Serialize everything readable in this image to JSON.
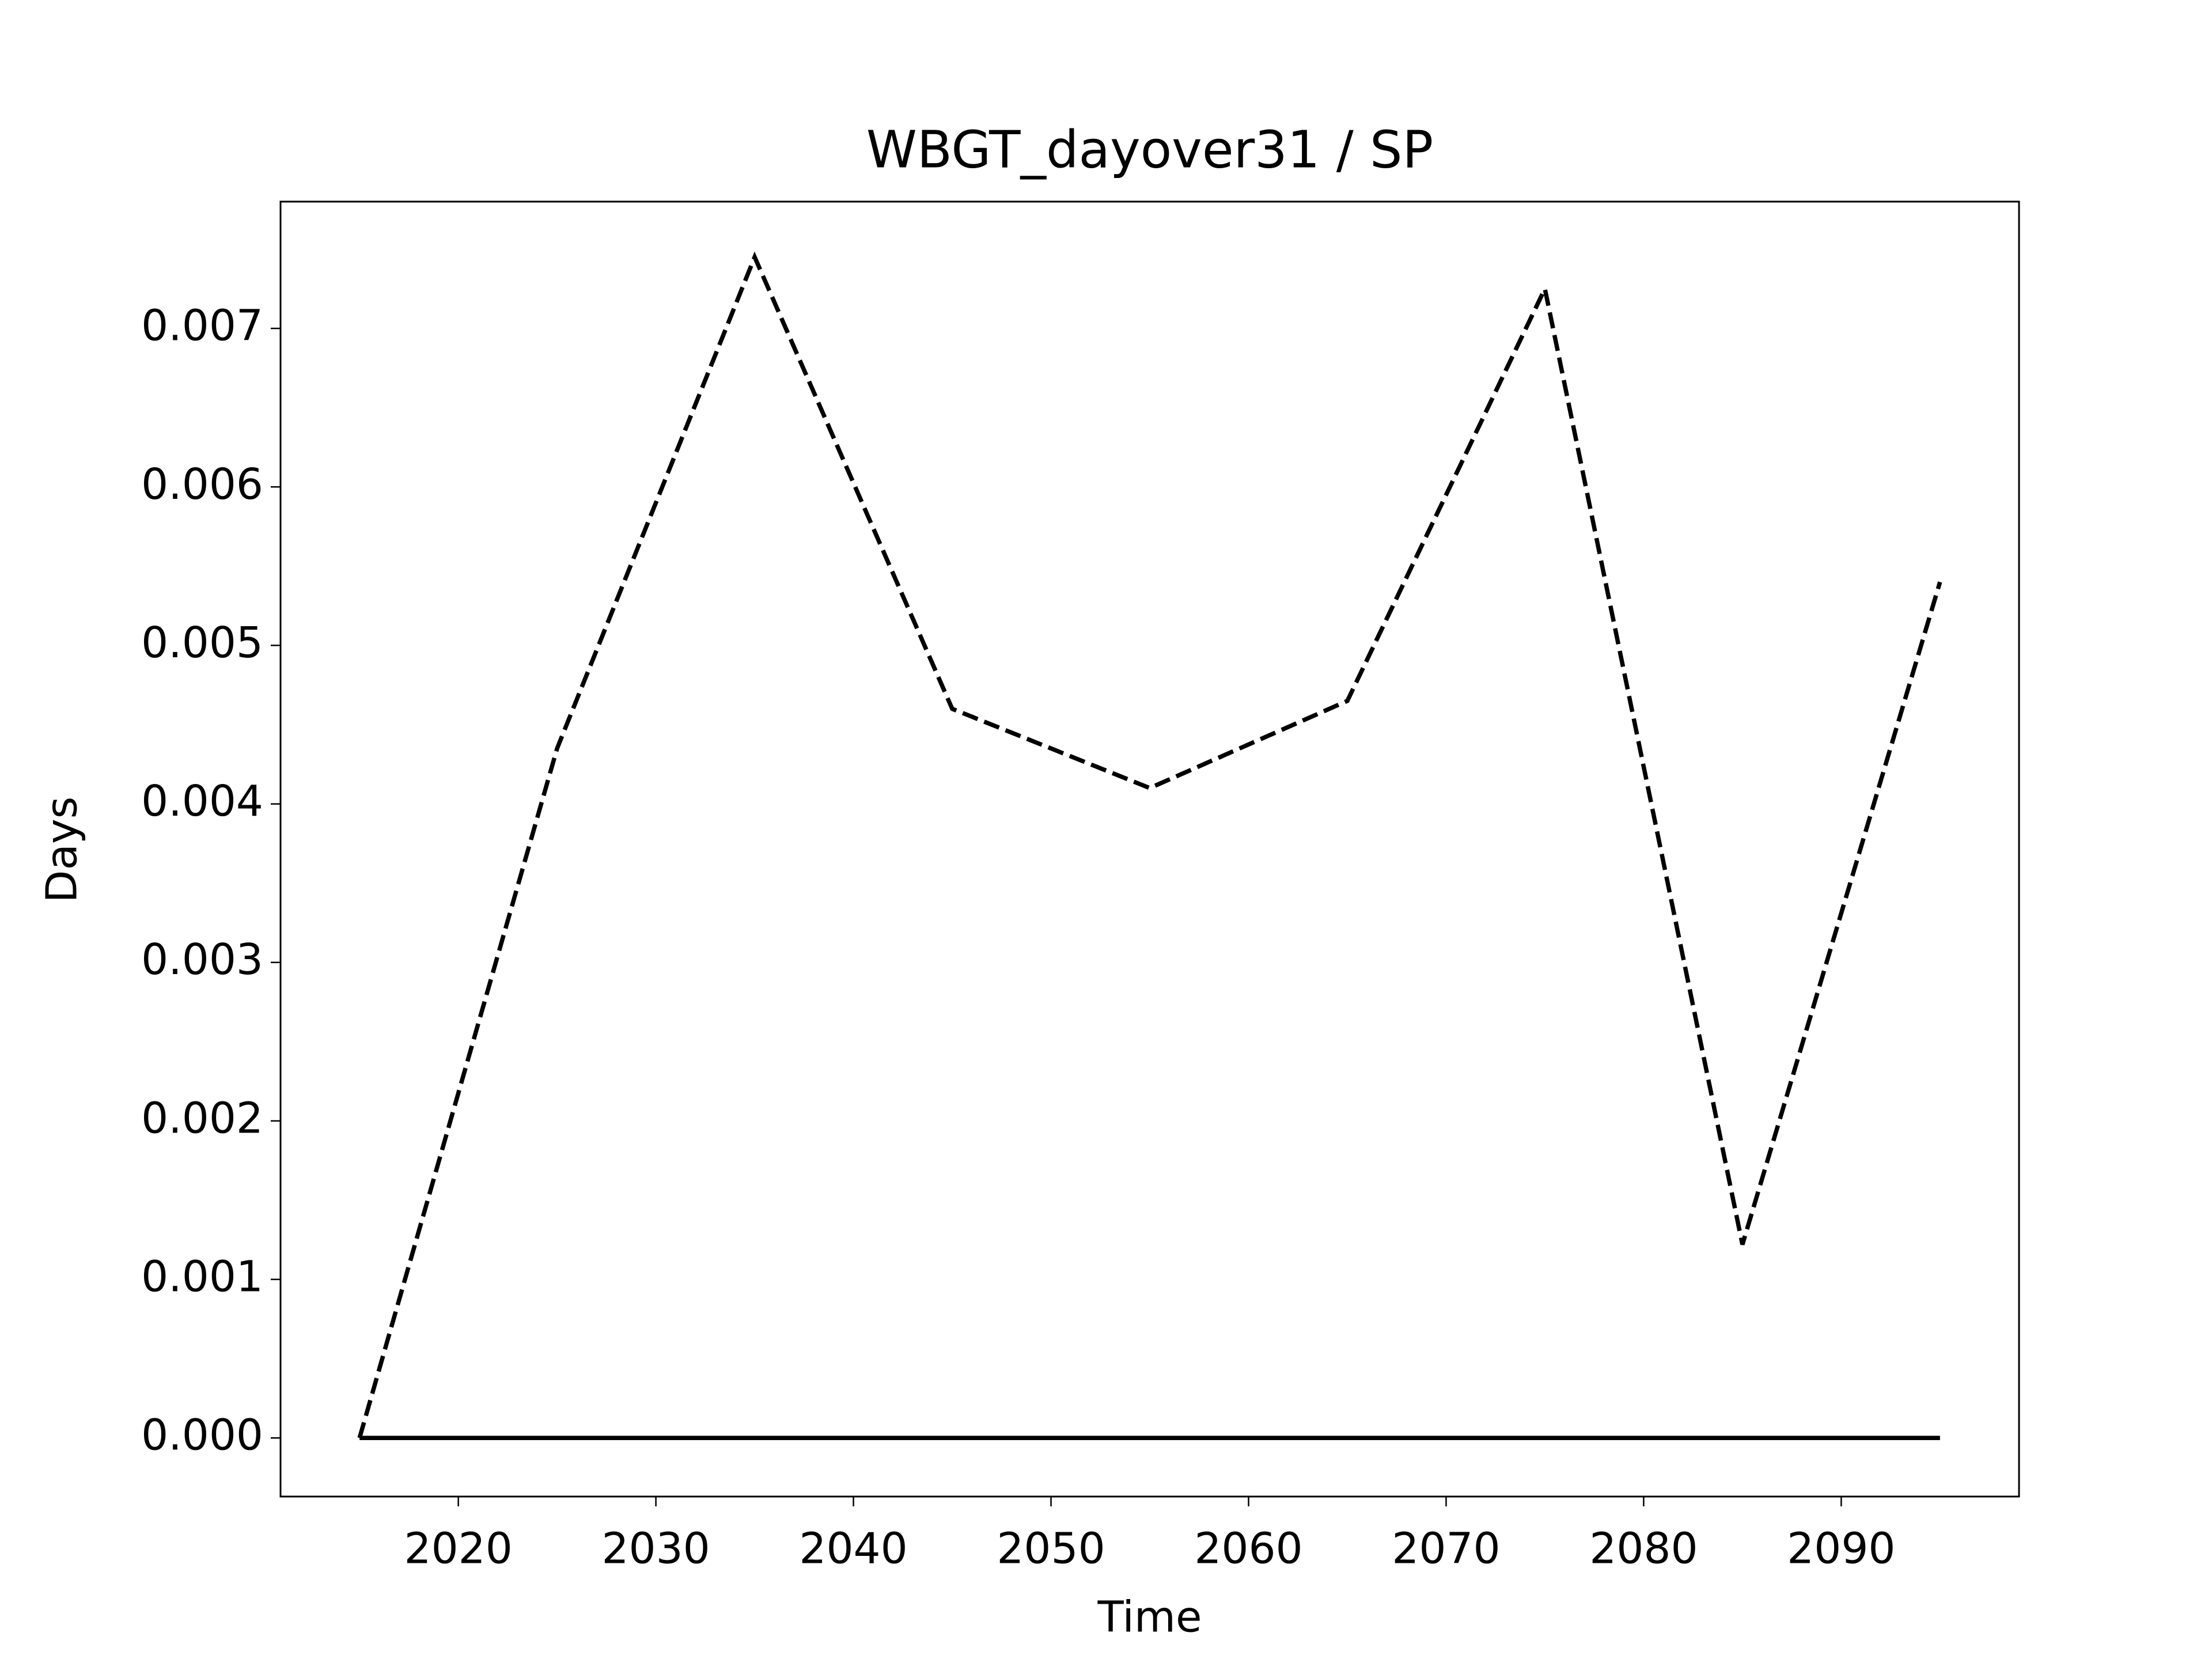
{
  "chart_data": {
    "type": "line",
    "title": "WBGT_dayover31 / SP",
    "xlabel": "Time",
    "ylabel": "Days",
    "x": [
      2015,
      2025,
      2035,
      2045,
      2055,
      2065,
      2075,
      2085,
      2095
    ],
    "series": [
      {
        "color": "#000000",
        "style": "dashed",
        "values": [
          0,
          0.00435,
          0.00745,
          0.0046,
          0.0041,
          0.00465,
          0.00725,
          0.00122,
          0.0054
        ]
      },
      {
        "color": "#000000",
        "style": "solid",
        "values": [
          0,
          0,
          0,
          0,
          0,
          0,
          0,
          0,
          0
        ]
      }
    ],
    "xlim": [
      2011,
      2099
    ],
    "ylim": [
      -0.00037,
      0.0078
    ],
    "xticks": [
      2020,
      2030,
      2040,
      2050,
      2060,
      2070,
      2080,
      2090
    ],
    "yticks": [
      {
        "value": 0,
        "label": "0.000"
      },
      {
        "value": 0.001,
        "label": "0.001"
      },
      {
        "value": 0.002,
        "label": "0.002"
      },
      {
        "value": 0.003,
        "label": "0.003"
      },
      {
        "value": 0.004,
        "label": "0.004"
      },
      {
        "value": 0.005,
        "label": "0.005"
      },
      {
        "value": 0.006,
        "label": "0.006"
      },
      {
        "value": 0.007,
        "label": "0.007"
      }
    ],
    "grid": false
  }
}
